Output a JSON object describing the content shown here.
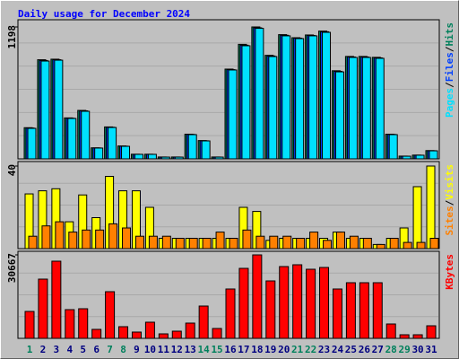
{
  "title": "Daily usage for December 2024",
  "x_axis": {
    "categories": [
      "1",
      "2",
      "3",
      "4",
      "5",
      "6",
      "7",
      "8",
      "9",
      "10",
      "11",
      "12",
      "13",
      "14",
      "15",
      "16",
      "17",
      "18",
      "19",
      "20",
      "21",
      "22",
      "23",
      "24",
      "25",
      "26",
      "27",
      "28",
      "29",
      "30",
      "31"
    ],
    "colors": [
      "#00805c",
      "#000080",
      "#000080",
      "#000080",
      "#000080",
      "#000080",
      "#00805c",
      "#00805c",
      "#000080",
      "#000080",
      "#000080",
      "#000080",
      "#000080",
      "#00805c",
      "#00805c",
      "#000080",
      "#000080",
      "#000080",
      "#000080",
      "#000080",
      "#00805c",
      "#00805c",
      "#000080",
      "#000080",
      "#000080",
      "#000080",
      "#000080",
      "#00805c",
      "#00805c",
      "#000080",
      "#000080"
    ]
  },
  "legend_separator": "/",
  "chart_data": [
    {
      "type": "bar",
      "ylim": [
        0,
        1198
      ],
      "yticks": [
        1198
      ],
      "series": [
        {
          "name": "Hits",
          "color": "#00805c",
          "values": [
            283,
            900,
            905,
            372,
            440,
            100,
            290,
            117,
            42,
            42,
            17,
            17,
            224,
            166,
            17,
            815,
            1040,
            1198,
            940,
            1128,
            1100,
            1125,
            1160,
            800,
            930,
            930,
            922,
            224,
            25,
            34,
            75
          ]
        },
        {
          "name": "Files",
          "color": "#0040ff",
          "values": [
            280,
            893,
            900,
            369,
            436,
            99,
            287,
            115,
            41,
            41,
            16,
            16,
            222,
            164,
            16,
            810,
            1032,
            1190,
            934,
            1122,
            1096,
            1120,
            1154,
            795,
            925,
            925,
            917,
            222,
            24,
            33,
            74
          ]
        },
        {
          "name": "Pages",
          "color": "#00e0ff",
          "values": [
            277,
            888,
            896,
            367,
            432,
            98,
            285,
            114,
            41,
            41,
            16,
            16,
            220,
            163,
            16,
            807,
            1027,
            1185,
            929,
            1117,
            1092,
            1117,
            1149,
            790,
            921,
            921,
            913,
            220,
            24,
            33,
            73
          ]
        }
      ]
    },
    {
      "type": "bar",
      "ylim": [
        0,
        40
      ],
      "yticks": [
        40
      ],
      "series": [
        {
          "name": "Visits",
          "color": "#ffff00",
          "values": [
            26.5,
            28,
            29,
            13,
            26,
            15,
            35,
            28,
            28,
            20,
            5,
            5,
            5,
            5,
            5,
            5,
            20,
            18,
            4,
            5,
            5,
            5,
            5,
            8,
            5,
            5,
            2,
            5,
            10,
            30,
            40
          ]
        },
        {
          "name": "Sites",
          "color": "#ff8000",
          "values": [
            6,
            11,
            13,
            8,
            9,
            9,
            12,
            10,
            6,
            6,
            6,
            5,
            5,
            5,
            8,
            5,
            9,
            6,
            6,
            6,
            5,
            8,
            4,
            8,
            6,
            5,
            2,
            5,
            3,
            3,
            5
          ]
        }
      ]
    },
    {
      "type": "bar",
      "ylim": [
        0,
        30667
      ],
      "yticks": [
        30667
      ],
      "series": [
        {
          "name": "KBytes",
          "color": "#ff0000",
          "values": [
            9892,
            21764,
            28358,
            10552,
            10882,
            3298,
            17147,
            4287,
            2308,
            5936,
            1649,
            2638,
            5606,
            11871,
            3627,
            18136,
            25721,
            30667,
            21104,
            26380,
            27039,
            25391,
            26050,
            18136,
            20444,
            20444,
            20444,
            5276,
            1319,
            1319,
            4616
          ]
        }
      ]
    }
  ]
}
